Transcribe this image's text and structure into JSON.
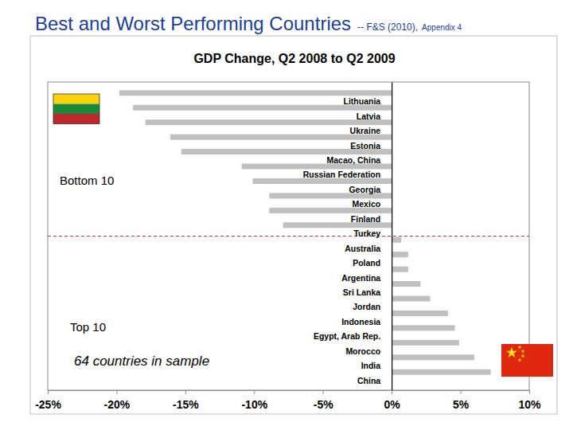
{
  "header": {
    "title": "Best and Worst Performing Countries",
    "source": "-- F&S (2010),",
    "note": "Appendix 4"
  },
  "chart_data": {
    "type": "bar",
    "title": "GDP Change, Q2 2008 to Q2 2009",
    "orientation": "horizontal",
    "categories": [
      "Lithuania",
      "Latvia",
      "Ukraine",
      "Estonia",
      "Macao, China",
      "Russian Federation",
      "Georgia",
      "Mexico",
      "Finland",
      "Turkey",
      "Australia",
      "Poland",
      "Argentina",
      "Sri Lanka",
      "Jordan",
      "Indonesia",
      "Egypt, Arab Rep.",
      "Morocco",
      "India",
      "China"
    ],
    "values": [
      -19.8,
      -18.8,
      -17.9,
      -16.1,
      -15.3,
      -10.9,
      -10.1,
      -8.9,
      -8.9,
      -7.9,
      0.7,
      1.2,
      1.2,
      2.1,
      2.8,
      4.1,
      4.6,
      4.9,
      6.0,
      7.2
    ],
    "color": "#c0c0c0",
    "xlim": [
      -25,
      10
    ],
    "xticks": [
      {
        "value": -25,
        "label": "-25%"
      },
      {
        "value": -20,
        "label": "-20%"
      },
      {
        "value": -15,
        "label": "-15%"
      },
      {
        "value": -10,
        "label": "-10%"
      },
      {
        "value": -5,
        "label": "-5%"
      },
      {
        "value": 0,
        "label": "0%"
      },
      {
        "value": 5,
        "label": "5%"
      },
      {
        "value": 10,
        "label": "10%"
      }
    ],
    "grid": false,
    "annotations": [
      "Bottom 10",
      "Top 10",
      "64 countries in sample"
    ]
  }
}
